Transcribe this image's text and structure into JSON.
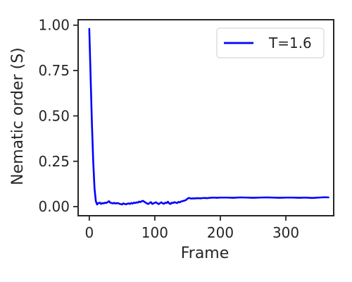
{
  "chart_data": {
    "type": "line",
    "xlabel": "Frame",
    "ylabel": "Nematic order (S)",
    "xlim": [
      -17,
      373
    ],
    "ylim": [
      -0.05,
      1.03
    ],
    "x_ticks": [
      0,
      100,
      200,
      300
    ],
    "x_tick_labels": [
      "0",
      "100",
      "200",
      "300"
    ],
    "y_ticks": [
      0.0,
      0.25,
      0.5,
      0.75,
      1.0
    ],
    "y_tick_labels": [
      "0.00",
      "0.25",
      "0.50",
      "0.75",
      "1.00"
    ],
    "grid": false,
    "legend_position": "top-right",
    "series": [
      {
        "name": "T=1.6",
        "color": "#0000ff",
        "x": [
          0,
          2,
          4,
          6,
          8,
          10,
          12,
          14,
          16,
          18,
          20,
          22,
          24,
          26,
          28,
          30,
          32,
          34,
          36,
          38,
          40,
          42,
          44,
          46,
          48,
          50,
          52,
          54,
          56,
          58,
          60,
          62,
          64,
          66,
          68,
          70,
          72,
          74,
          76,
          78,
          80,
          82,
          84,
          86,
          88,
          90,
          92,
          94,
          96,
          98,
          100,
          102,
          104,
          106,
          108,
          110,
          112,
          114,
          116,
          118,
          120,
          122,
          124,
          126,
          128,
          130,
          132,
          134,
          136,
          138,
          140,
          142,
          144,
          146,
          148,
          150,
          152,
          154,
          156,
          158,
          160,
          165,
          170,
          175,
          180,
          185,
          190,
          195,
          200,
          210,
          220,
          230,
          240,
          250,
          260,
          270,
          280,
          290,
          300,
          310,
          320,
          330,
          340,
          350,
          360,
          365
        ],
        "y": [
          0.98,
          0.72,
          0.46,
          0.25,
          0.1,
          0.03,
          0.012,
          0.02,
          0.022,
          0.015,
          0.02,
          0.018,
          0.022,
          0.02,
          0.025,
          0.03,
          0.022,
          0.02,
          0.018,
          0.021,
          0.017,
          0.02,
          0.019,
          0.016,
          0.014,
          0.012,
          0.018,
          0.015,
          0.013,
          0.016,
          0.018,
          0.015,
          0.02,
          0.017,
          0.022,
          0.02,
          0.024,
          0.022,
          0.028,
          0.025,
          0.03,
          0.032,
          0.027,
          0.022,
          0.018,
          0.015,
          0.02,
          0.025,
          0.015,
          0.018,
          0.022,
          0.024,
          0.018,
          0.014,
          0.02,
          0.024,
          0.018,
          0.016,
          0.022,
          0.02,
          0.027,
          0.018,
          0.015,
          0.022,
          0.02,
          0.025,
          0.022,
          0.02,
          0.026,
          0.024,
          0.028,
          0.03,
          0.032,
          0.034,
          0.038,
          0.044,
          0.048,
          0.046,
          0.044,
          0.046,
          0.045,
          0.047,
          0.046,
          0.048,
          0.047,
          0.049,
          0.05,
          0.049,
          0.05,
          0.05,
          0.049,
          0.051,
          0.05,
          0.049,
          0.05,
          0.051,
          0.05,
          0.049,
          0.05,
          0.05,
          0.049,
          0.05,
          0.048,
          0.05,
          0.052,
          0.051
        ]
      }
    ]
  }
}
